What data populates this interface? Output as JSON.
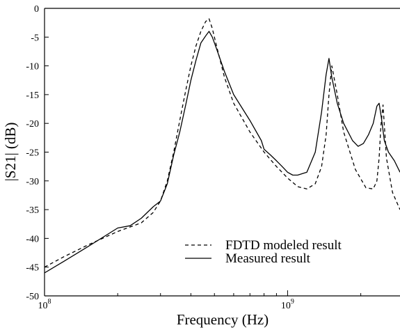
{
  "chart_data": {
    "type": "line",
    "xlabel": "Frequency (Hz)",
    "ylabel": "|S21| (dB)",
    "x_scale": "log",
    "xlim": [
      100000000,
      2900000000
    ],
    "ylim": [
      -50,
      0
    ],
    "x_ticks": [
      {
        "value": 100000000,
        "base": "10",
        "exp": "8"
      },
      {
        "value": 1000000000,
        "base": "10",
        "exp": "9"
      }
    ],
    "y_ticks": [
      0,
      -5,
      -10,
      -15,
      -20,
      -25,
      -30,
      -35,
      -40,
      -45,
      -50
    ],
    "grid": false,
    "legend": {
      "position": "lower-right",
      "entries": [
        "FDTD modeled result",
        "Measured result"
      ]
    },
    "series": [
      {
        "name": "FDTD modeled result",
        "style": "dashed",
        "color": "#000000",
        "x": [
          100000000,
          120000000,
          150000000,
          200000000,
          250000000,
          280000000,
          300000000,
          320000000,
          340000000,
          360000000,
          380000000,
          400000000,
          420000000,
          440000000,
          460000000,
          475000000,
          490000000,
          510000000,
          550000000,
          600000000,
          700000000,
          800000000,
          900000000,
          1000000000,
          1100000000,
          1200000000,
          1300000000,
          1380000000,
          1440000000,
          1480000000,
          1520000000,
          1600000000,
          1700000000,
          1900000000,
          2100000000,
          2250000000,
          2330000000,
          2380000000,
          2420000000,
          2470000000,
          2550000000,
          2700000000,
          2900000000
        ],
        "y": [
          -45.0,
          -43.2,
          -41.2,
          -38.8,
          -37.3,
          -35.5,
          -33.5,
          -30.0,
          -25.0,
          -19.5,
          -14.5,
          -10.0,
          -6.5,
          -4.0,
          -2.3,
          -1.8,
          -3.5,
          -6.5,
          -12.0,
          -16.5,
          -21.5,
          -25.0,
          -27.5,
          -29.5,
          -31.0,
          -31.4,
          -30.5,
          -27.5,
          -22.0,
          -15.0,
          -10.0,
          -15.0,
          -21.5,
          -28.0,
          -31.2,
          -31.4,
          -30.0,
          -26.0,
          -20.5,
          -16.8,
          -26.0,
          -32.0,
          -35.0
        ]
      },
      {
        "name": "Measured result",
        "style": "solid",
        "color": "#000000",
        "x": [
          100000000,
          120000000,
          150000000,
          200000000,
          225000000,
          250000000,
          280000000,
          300000000,
          320000000,
          340000000,
          360000000,
          380000000,
          400000000,
          420000000,
          440000000,
          460000000,
          475000000,
          490000000,
          510000000,
          550000000,
          600000000,
          700000000,
          780000000,
          800000000,
          850000000,
          900000000,
          950000000,
          1000000000,
          1050000000,
          1100000000,
          1200000000,
          1300000000,
          1380000000,
          1440000000,
          1480000000,
          1520000000,
          1600000000,
          1700000000,
          1850000000,
          1950000000,
          2050000000,
          2150000000,
          2250000000,
          2330000000,
          2380000000,
          2430000000,
          2500000000,
          2600000000,
          2750000000,
          2900000000
        ],
        "y": [
          -46.0,
          -44.0,
          -41.5,
          -38.2,
          -37.8,
          -36.5,
          -34.5,
          -33.5,
          -30.5,
          -25.5,
          -21.5,
          -17.0,
          -12.5,
          -9.0,
          -6.0,
          -4.8,
          -4.0,
          -5.0,
          -7.0,
          -11.0,
          -15.0,
          -19.5,
          -23.0,
          -24.5,
          -25.5,
          -26.5,
          -27.5,
          -28.5,
          -29.0,
          -29.0,
          -28.5,
          -25.0,
          -18.0,
          -11.5,
          -8.7,
          -12.0,
          -16.5,
          -20.0,
          -23.0,
          -24.0,
          -23.5,
          -22.0,
          -20.0,
          -17.0,
          -16.5,
          -19.0,
          -23.0,
          -25.0,
          -26.5,
          -28.5
        ]
      }
    ]
  }
}
